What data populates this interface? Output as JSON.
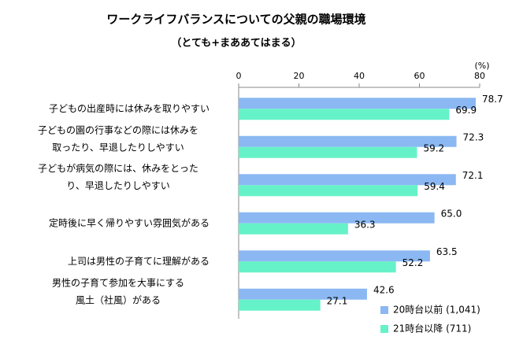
{
  "chart_data": {
    "type": "bar",
    "orientation": "horizontal",
    "title": "ワークライフバランスについての父親の職場環境",
    "subtitle": "（とても+まああてはまる）",
    "unit": "(%)",
    "categories": [
      [
        "子どもの出産時には休みを取りやすい"
      ],
      [
        "子どもの園の行事などの際には休みを",
        "取ったり、早退したりしやすい"
      ],
      [
        "子どもが病気の際には、休みをとった",
        "り、早退したりしやすい"
      ],
      [
        "定時後に早く帰りやすい雰囲気がある"
      ],
      [
        "上司は男性の子育てに理解がある"
      ],
      [
        "男性の子育て参加を大事にする",
        "風土（社風）がある"
      ]
    ],
    "series": [
      {
        "name": "20時台以前 (1,041)",
        "color": "#8bb8f2",
        "values": [
          78.7,
          72.3,
          72.1,
          65.0,
          63.5,
          42.6
        ],
        "value_labels": [
          "78.7",
          "72.3",
          "72.1",
          "65.0",
          "63.5",
          "42.6"
        ]
      },
      {
        "name": "21時台以降 (711)",
        "color": "#66f2c8",
        "values": [
          69.9,
          59.2,
          59.4,
          36.3,
          52.2,
          27.1
        ],
        "value_labels": [
          "69.9",
          "59.2",
          "59.4",
          "36.3",
          "52.2",
          "27.1"
        ]
      }
    ],
    "xlim": [
      0,
      80
    ],
    "xticks": [
      0,
      20,
      40,
      60,
      80
    ],
    "legend": "bottom-right"
  }
}
